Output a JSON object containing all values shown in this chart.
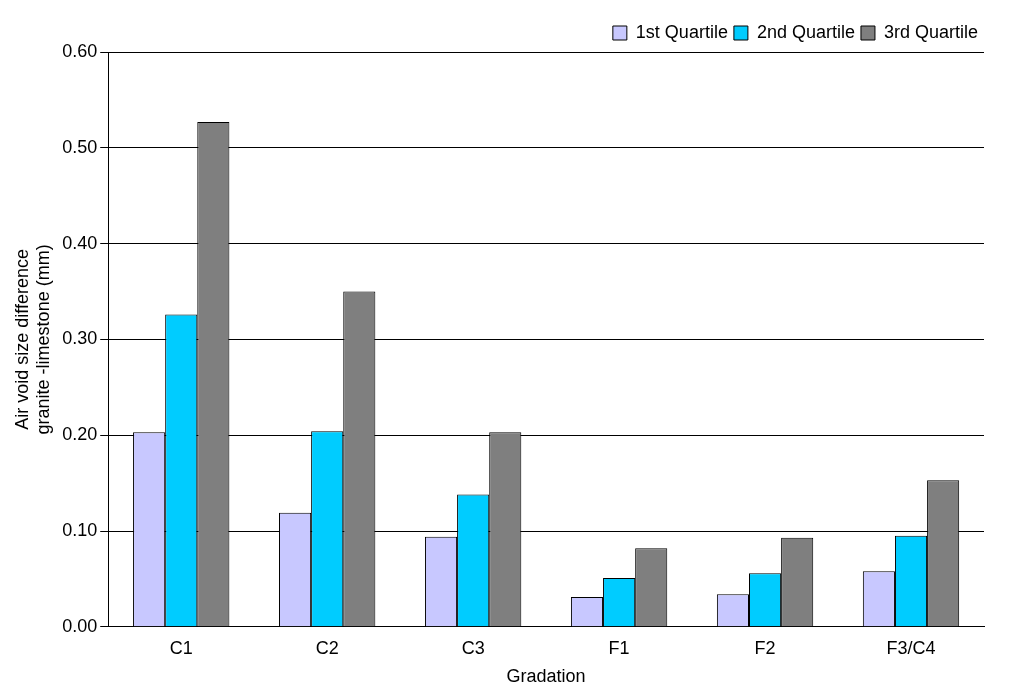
{
  "chart_data": {
    "type": "bar",
    "xlabel": "Gradation",
    "ylabel": "Air void size difference\ngranite -limestone (mm)",
    "categories": [
      "C1",
      "C2",
      "C3",
      "F1",
      "F2",
      "F3/C4"
    ],
    "series": [
      {
        "name": "1st Quartile",
        "color": "#c8c8ff",
        "values": [
          0.203,
          0.119,
          0.094,
          0.031,
          0.034,
          0.058
        ]
      },
      {
        "name": "2nd Quartile",
        "color": "#00ccff",
        "values": [
          0.326,
          0.204,
          0.138,
          0.051,
          0.056,
          0.095
        ]
      },
      {
        "name": "3rd Quartile",
        "color": "#7f7f7f",
        "values": [
          0.527,
          0.35,
          0.203,
          0.082,
          0.093,
          0.153
        ]
      }
    ],
    "ylim": [
      0,
      0.6
    ],
    "yticks": [
      {
        "value": 0,
        "label": "0.00"
      },
      {
        "value": 0.1,
        "label": "0.10"
      },
      {
        "value": 0.2,
        "label": "0.20"
      },
      {
        "value": 0.3,
        "label": "0.30"
      },
      {
        "value": 0.4,
        "label": "0.40"
      },
      {
        "value": 0.5,
        "label": "0.50"
      },
      {
        "value": 0.6,
        "label": "0.60"
      }
    ],
    "grid": "y",
    "legend": "top right"
  }
}
